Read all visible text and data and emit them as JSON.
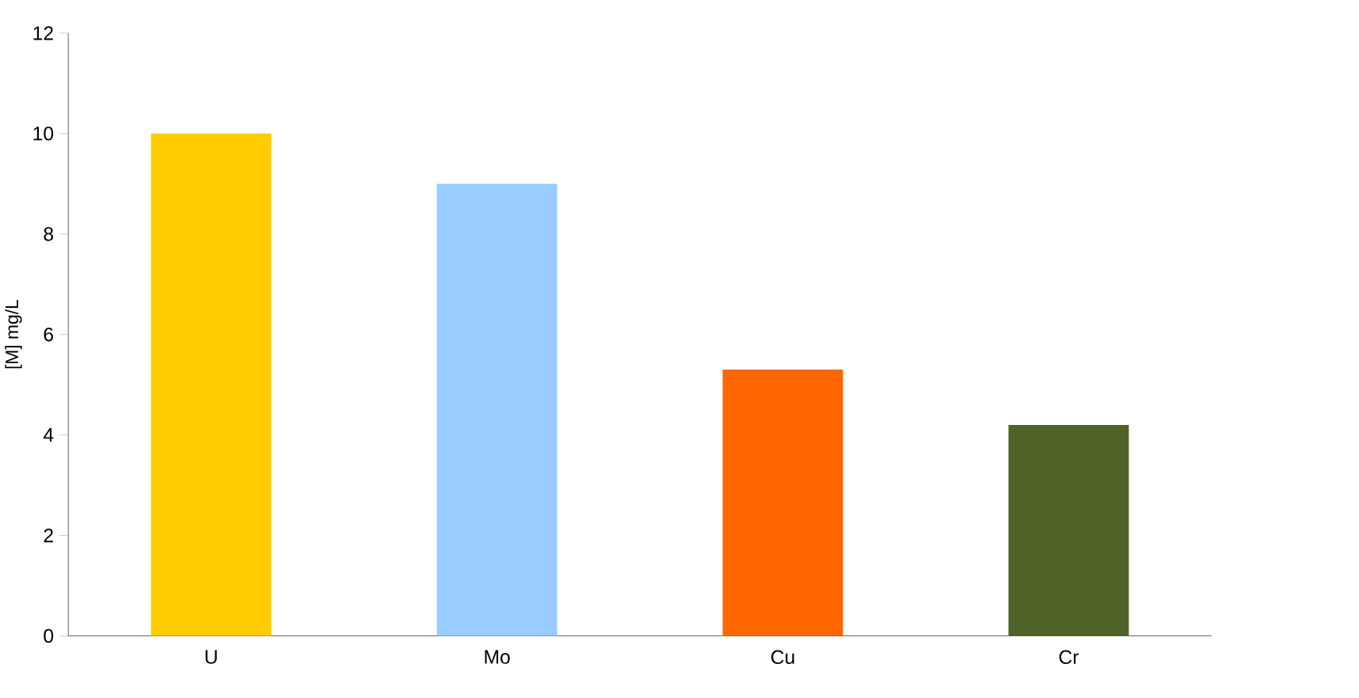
{
  "chart_data": {
    "type": "bar",
    "ylabel": "[M] mg/L",
    "categories": [
      "U",
      "Mo",
      "Cu",
      "Cr"
    ],
    "values": [
      10,
      9.0,
      5.3,
      4.2
    ],
    "colors": [
      "#ffcc00",
      "#99ccff",
      "#ff6600",
      "#4f6228"
    ],
    "ylim": [
      0,
      12
    ],
    "yticks": [
      0,
      2,
      4,
      6,
      8,
      10,
      12
    ]
  }
}
